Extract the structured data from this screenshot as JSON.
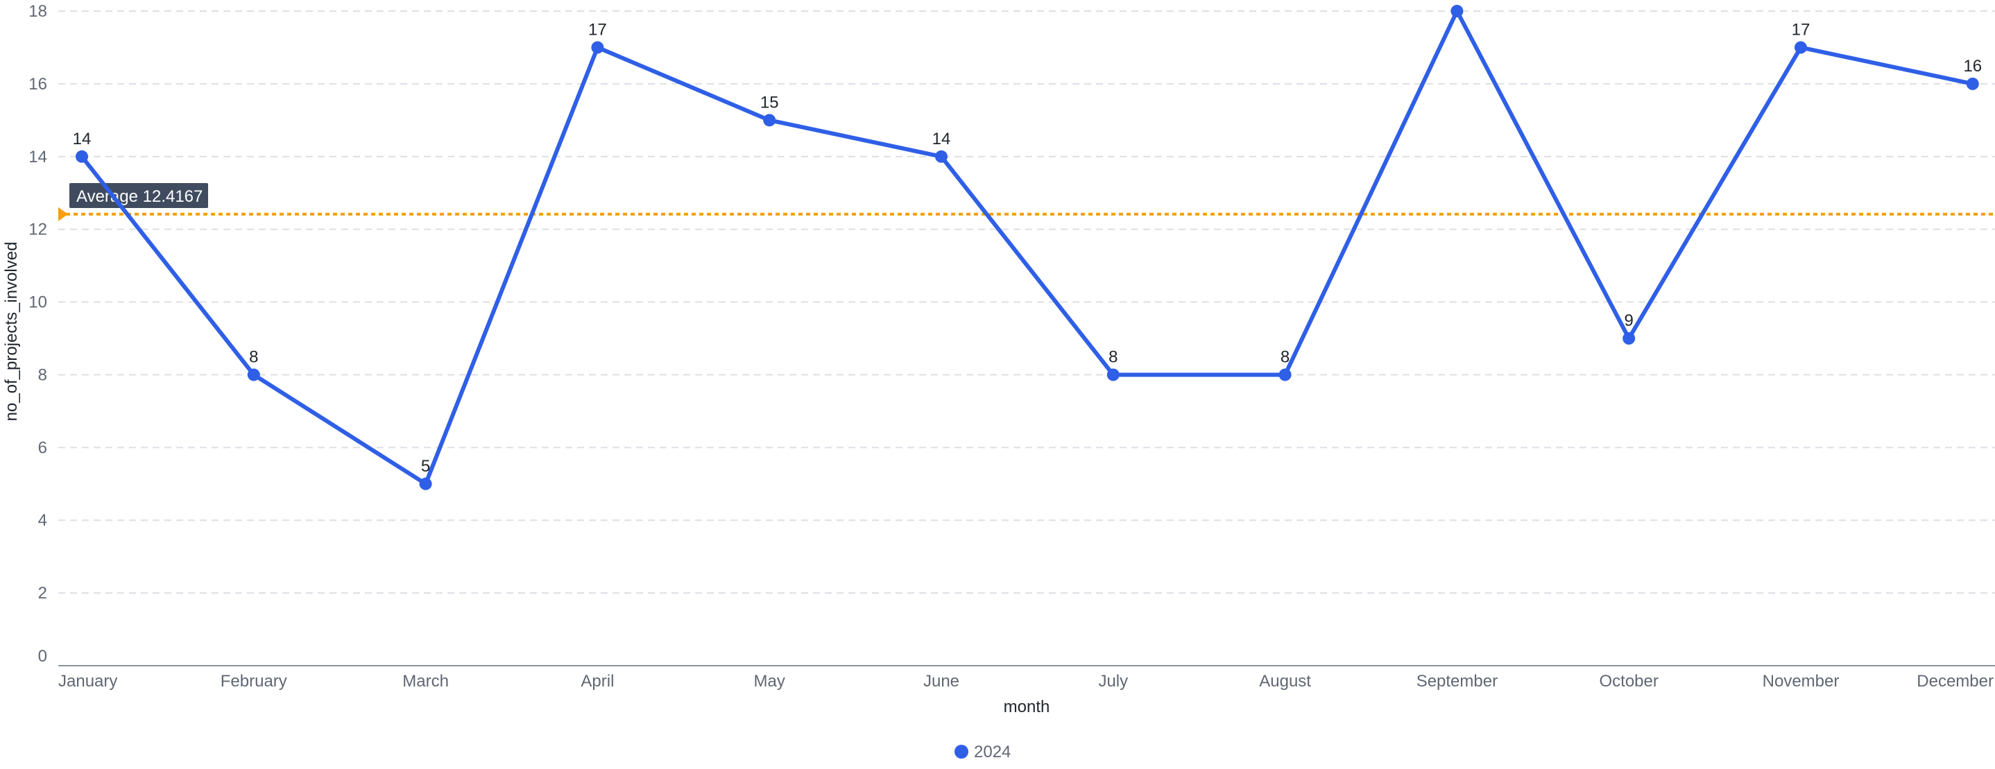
{
  "chart_data": {
    "type": "line",
    "xlabel": "month",
    "ylabel": "no_of_projects_involved",
    "categories": [
      "January",
      "February",
      "March",
      "April",
      "May",
      "June",
      "July",
      "August",
      "September",
      "October",
      "November",
      "December"
    ],
    "series": [
      {
        "name": "2024",
        "values": [
          14,
          8,
          5,
          17,
          15,
          14,
          8,
          8,
          18,
          9,
          17,
          16
        ],
        "color": "#2f5fe6"
      }
    ],
    "ylim": [
      0,
      18
    ],
    "yticks": [
      0,
      2,
      4,
      6,
      8,
      10,
      12,
      14,
      16,
      18
    ],
    "grid": true,
    "legend_position": "bottom",
    "average_line": {
      "label": "Average 12.4167",
      "value": 12.4167,
      "color": "#f5a00a"
    }
  }
}
